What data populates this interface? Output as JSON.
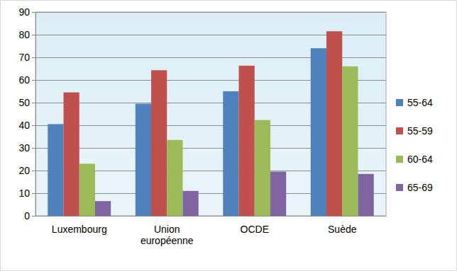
{
  "chart_data": {
    "type": "bar",
    "categories": [
      "Luxembourg",
      "Union européenne",
      "OCDE",
      "Suède"
    ],
    "series": [
      {
        "name": "55-64",
        "color": "#4f81bd",
        "values": [
          40.5,
          49.5,
          55,
          74
        ]
      },
      {
        "name": "55-59",
        "color": "#c0504d",
        "values": [
          54.5,
          64.3,
          66.3,
          81.5
        ]
      },
      {
        "name": "60-64",
        "color": "#9bbb59",
        "values": [
          23,
          33.5,
          42.3,
          66
        ]
      },
      {
        "name": "65-69",
        "color": "#8064a2",
        "values": [
          6.5,
          11,
          19.5,
          18.5
        ]
      }
    ],
    "ylim": [
      0,
      90
    ],
    "yticks": [
      0,
      10,
      20,
      30,
      40,
      50,
      60,
      70,
      80,
      90
    ],
    "grid": true,
    "legend": "right"
  }
}
